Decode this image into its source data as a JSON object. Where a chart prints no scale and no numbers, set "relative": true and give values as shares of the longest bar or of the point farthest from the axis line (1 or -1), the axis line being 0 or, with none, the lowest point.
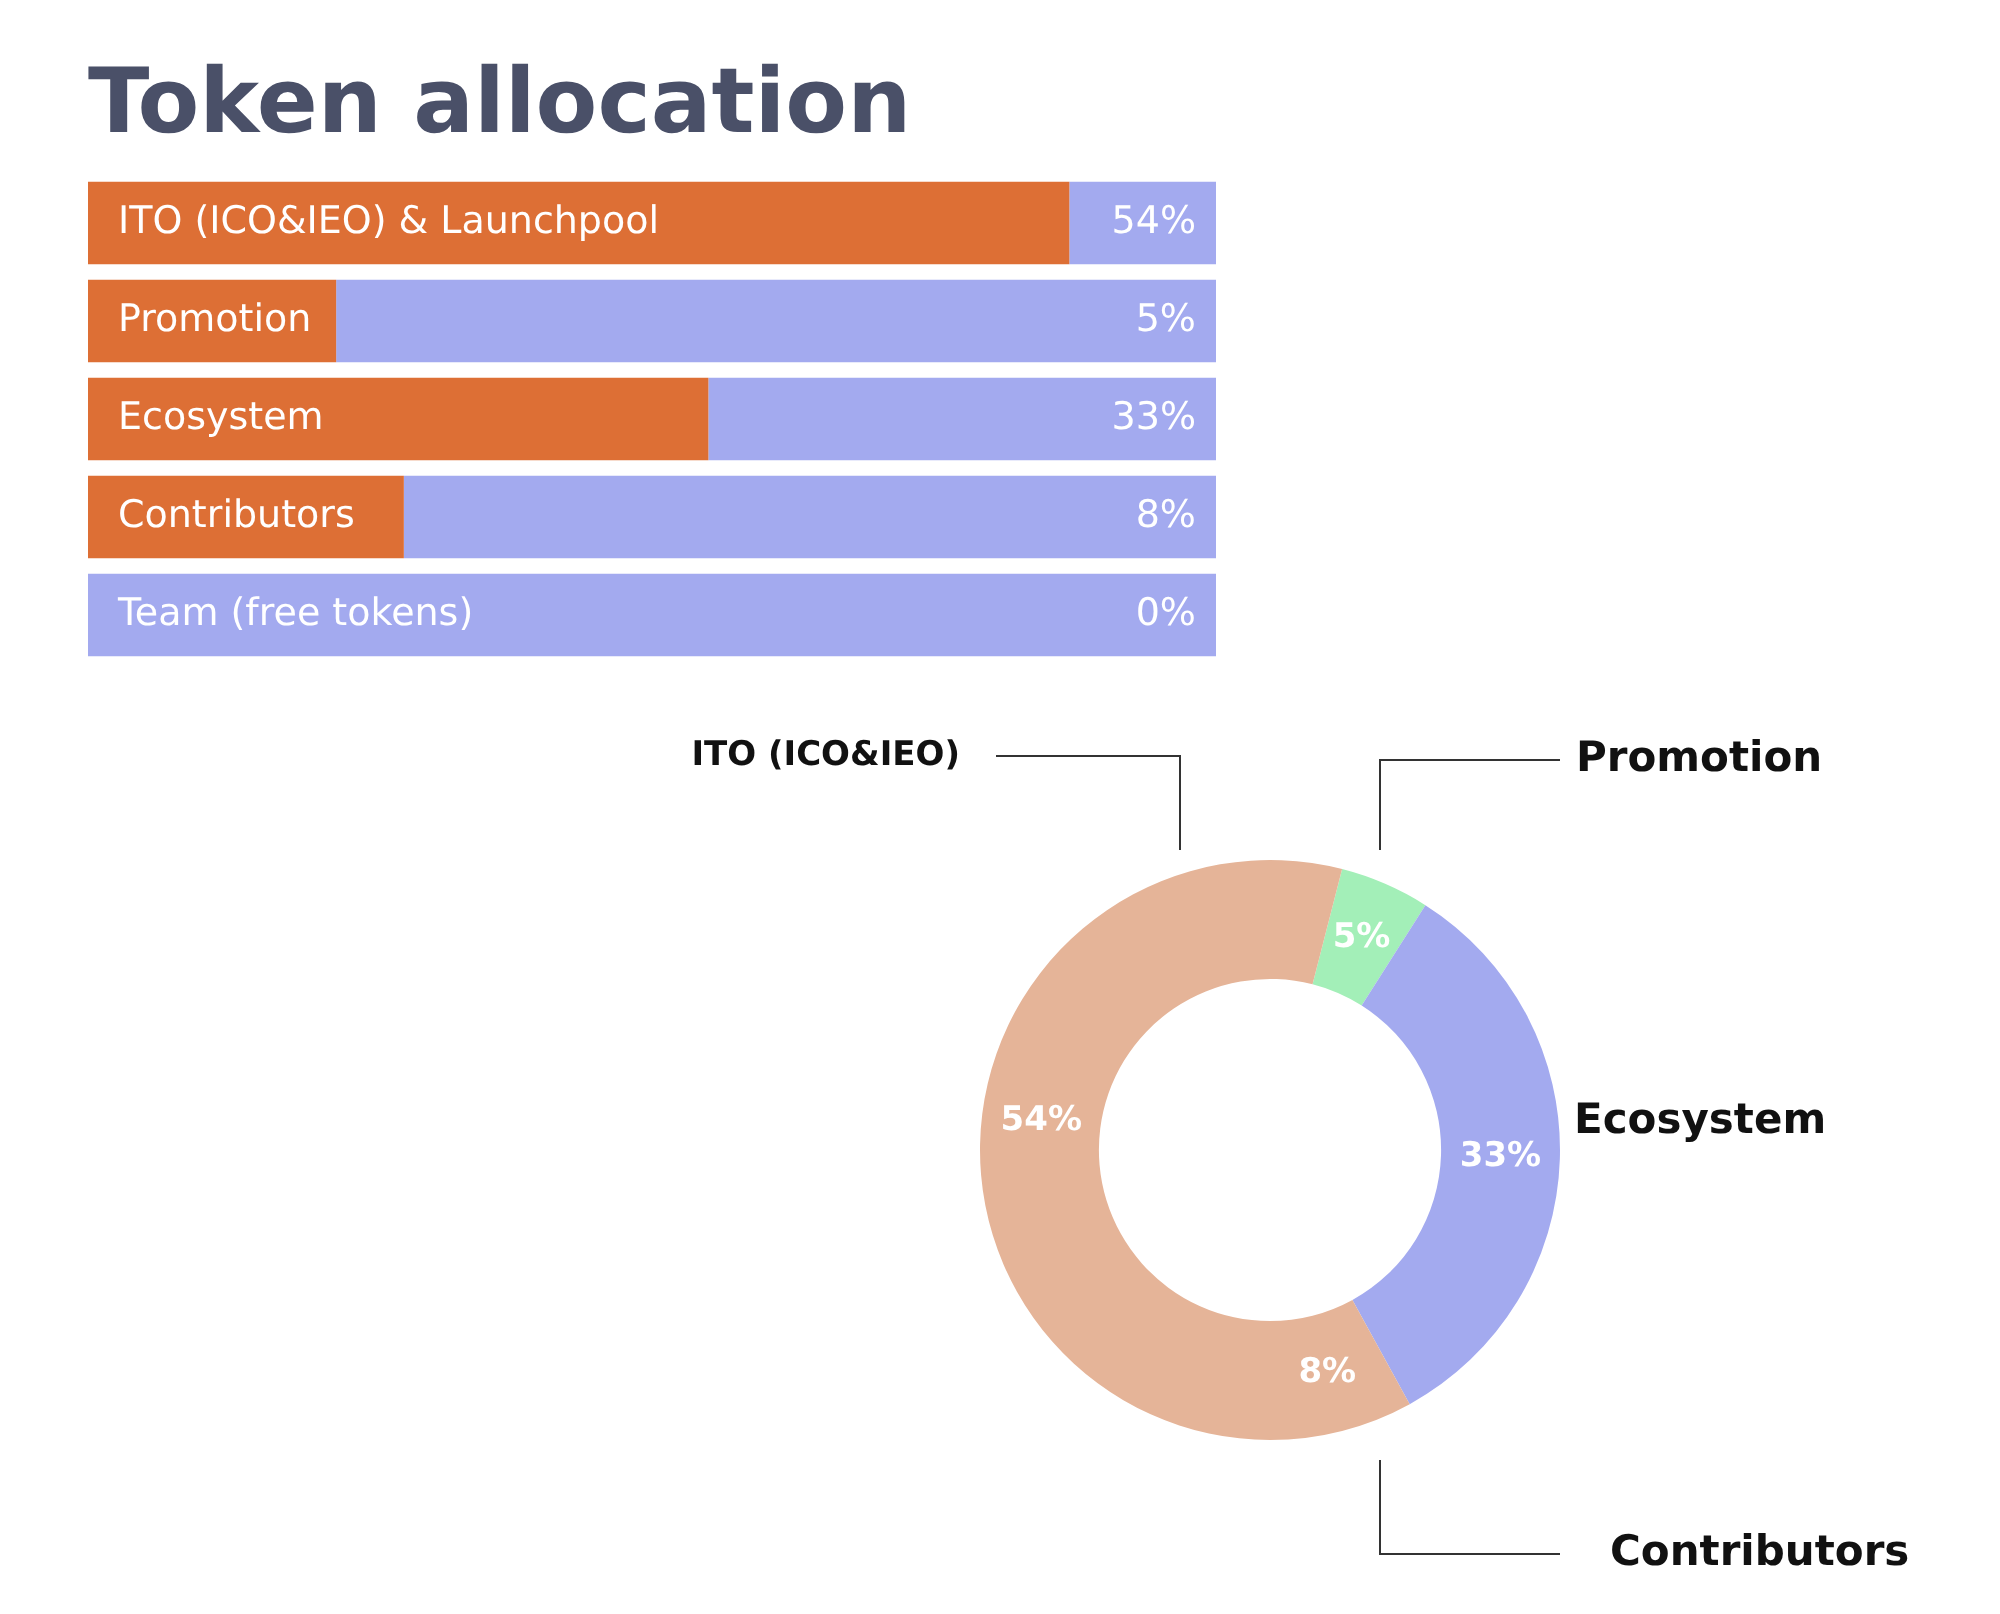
{
  "chart_data": [
    {
      "type": "bar",
      "title": "Token allocation",
      "orientation": "horizontal",
      "stacked": true,
      "relative": true,
      "categories": [
        "ITO (ICO&IEO) & Launchpool",
        "Promotion",
        "Ecosystem",
        "Contributors",
        "Team (free tokens)"
      ],
      "series": [
        {
          "color": "#dd6f35",
          "values": [
            0.87,
            0.22,
            0.55,
            0.28,
            0
          ]
        },
        {
          "color": "#a3aaef",
          "values": [
            0.13,
            0.78,
            0.45,
            0.72,
            1
          ]
        }
      ],
      "annotations": [
        {
          "text": "54%",
          "y": "ITO (ICO&IEO) & Launchpool"
        },
        {
          "text": "5%",
          "y": "Promotion"
        },
        {
          "text": "33%",
          "y": "Ecosystem"
        },
        {
          "text": "8%",
          "y": "Contributors"
        },
        {
          "text": "0%",
          "y": "Team (free tokens)"
        }
      ]
    },
    {
      "type": "donut",
      "categories": [
        "Promotion",
        "Ecosystem",
        "Contributors",
        "ITO (ICO&IEO)"
      ],
      "values": [
        5,
        33,
        8,
        54
      ],
      "colors": [
        "#a3efb8",
        "#a3aaef",
        "#e5b498",
        "#e5b498"
      ],
      "value_labels": [
        "5%",
        "33%",
        "8%",
        "54%"
      ]
    }
  ]
}
